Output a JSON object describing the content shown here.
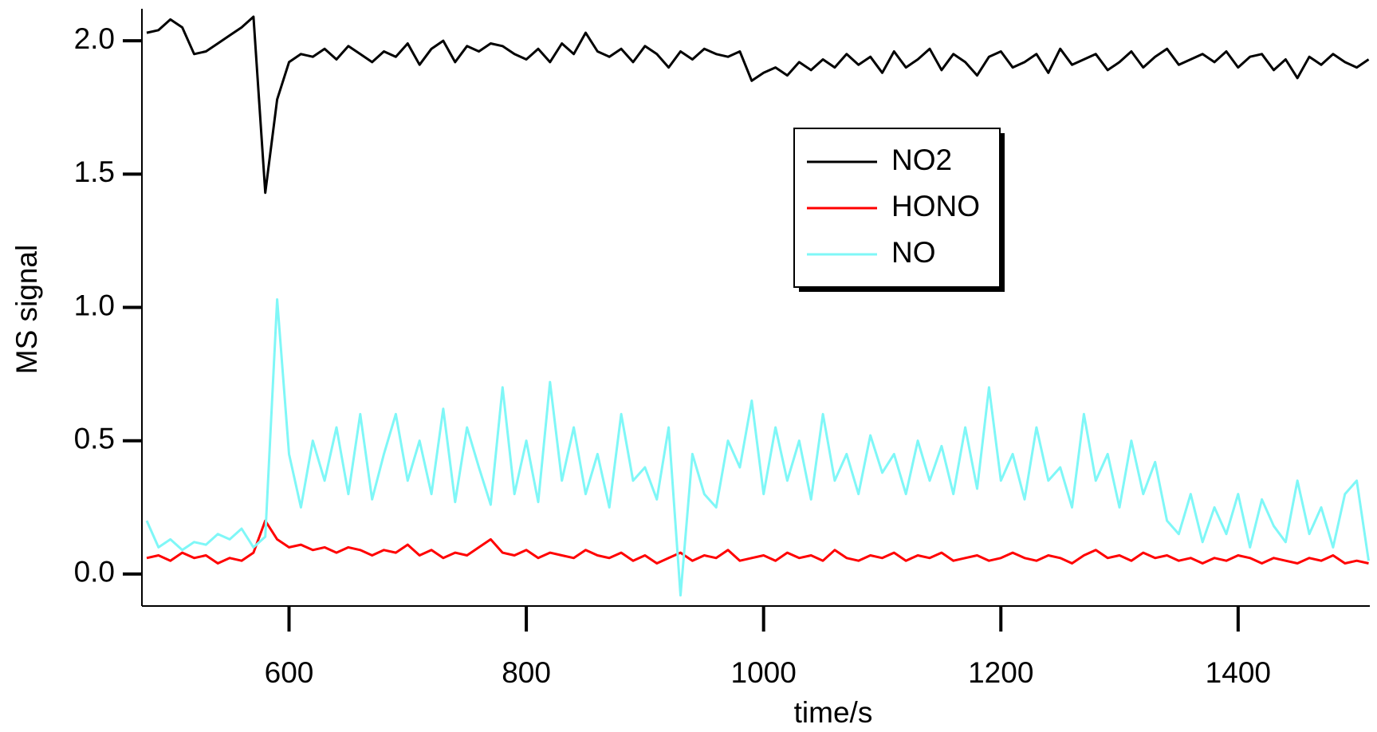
{
  "chart_data": {
    "type": "line",
    "xlabel": "time/s",
    "ylabel": "MS signal",
    "x": [
      480,
      490,
      500,
      510,
      520,
      530,
      540,
      550,
      560,
      570,
      580,
      590,
      600,
      610,
      620,
      630,
      640,
      650,
      660,
      670,
      680,
      690,
      700,
      710,
      720,
      730,
      740,
      750,
      760,
      770,
      780,
      790,
      800,
      810,
      820,
      830,
      840,
      850,
      860,
      870,
      880,
      890,
      900,
      910,
      920,
      930,
      940,
      950,
      960,
      970,
      980,
      990,
      1000,
      1010,
      1020,
      1030,
      1040,
      1050,
      1060,
      1070,
      1080,
      1090,
      1100,
      1110,
      1120,
      1130,
      1140,
      1150,
      1160,
      1170,
      1180,
      1190,
      1200,
      1210,
      1220,
      1230,
      1240,
      1250,
      1260,
      1270,
      1280,
      1290,
      1300,
      1310,
      1320,
      1330,
      1340,
      1350,
      1360,
      1370,
      1380,
      1390,
      1400,
      1410,
      1420,
      1430,
      1440,
      1450,
      1460,
      1470,
      1480,
      1490,
      1500,
      1510
    ],
    "series": [
      {
        "name": "NO2",
        "color": "#000000",
        "values": [
          2.03,
          2.04,
          2.08,
          2.05,
          1.95,
          1.96,
          1.99,
          2.02,
          2.05,
          2.09,
          1.43,
          1.78,
          1.92,
          1.95,
          1.94,
          1.97,
          1.93,
          1.98,
          1.95,
          1.92,
          1.96,
          1.94,
          1.99,
          1.91,
          1.97,
          2.0,
          1.92,
          1.98,
          1.96,
          1.99,
          1.98,
          1.95,
          1.93,
          1.97,
          1.92,
          1.99,
          1.95,
          2.03,
          1.96,
          1.94,
          1.97,
          1.92,
          1.98,
          1.95,
          1.9,
          1.96,
          1.93,
          1.97,
          1.95,
          1.94,
          1.96,
          1.85,
          1.88,
          1.9,
          1.87,
          1.92,
          1.89,
          1.93,
          1.9,
          1.95,
          1.91,
          1.94,
          1.88,
          1.96,
          1.9,
          1.93,
          1.97,
          1.89,
          1.95,
          1.92,
          1.87,
          1.94,
          1.96,
          1.9,
          1.92,
          1.95,
          1.88,
          1.97,
          1.91,
          1.93,
          1.95,
          1.89,
          1.92,
          1.96,
          1.9,
          1.94,
          1.97,
          1.91,
          1.93,
          1.95,
          1.92,
          1.96,
          1.9,
          1.94,
          1.95,
          1.89,
          1.93,
          1.86,
          1.94,
          1.91,
          1.95,
          1.92,
          1.9,
          1.93
        ]
      },
      {
        "name": "HONO",
        "color": "#ff0000",
        "values": [
          0.06,
          0.07,
          0.05,
          0.08,
          0.06,
          0.07,
          0.04,
          0.06,
          0.05,
          0.08,
          0.2,
          0.13,
          0.1,
          0.11,
          0.09,
          0.1,
          0.08,
          0.1,
          0.09,
          0.07,
          0.09,
          0.08,
          0.11,
          0.07,
          0.09,
          0.06,
          0.08,
          0.07,
          0.1,
          0.13,
          0.08,
          0.07,
          0.09,
          0.06,
          0.08,
          0.07,
          0.06,
          0.09,
          0.07,
          0.06,
          0.08,
          0.05,
          0.07,
          0.04,
          0.06,
          0.08,
          0.05,
          0.07,
          0.06,
          0.09,
          0.05,
          0.06,
          0.07,
          0.05,
          0.08,
          0.06,
          0.07,
          0.05,
          0.09,
          0.06,
          0.05,
          0.07,
          0.06,
          0.08,
          0.05,
          0.07,
          0.06,
          0.08,
          0.05,
          0.06,
          0.07,
          0.05,
          0.06,
          0.08,
          0.06,
          0.05,
          0.07,
          0.06,
          0.04,
          0.07,
          0.09,
          0.06,
          0.07,
          0.05,
          0.08,
          0.06,
          0.07,
          0.05,
          0.06,
          0.04,
          0.06,
          0.05,
          0.07,
          0.06,
          0.04,
          0.06,
          0.05,
          0.04,
          0.06,
          0.05,
          0.07,
          0.04,
          0.05,
          0.04
        ]
      },
      {
        "name": "NO",
        "color": "#7ff7f7",
        "values": [
          0.2,
          0.1,
          0.13,
          0.09,
          0.12,
          0.11,
          0.15,
          0.13,
          0.17,
          0.1,
          0.14,
          1.03,
          0.45,
          0.25,
          0.5,
          0.35,
          0.55,
          0.3,
          0.6,
          0.28,
          0.45,
          0.6,
          0.35,
          0.5,
          0.3,
          0.62,
          0.27,
          0.55,
          0.4,
          0.26,
          0.7,
          0.3,
          0.5,
          0.27,
          0.72,
          0.35,
          0.55,
          0.3,
          0.45,
          0.25,
          0.6,
          0.35,
          0.4,
          0.28,
          0.55,
          -0.08,
          0.45,
          0.3,
          0.25,
          0.5,
          0.4,
          0.65,
          0.3,
          0.55,
          0.35,
          0.5,
          0.28,
          0.6,
          0.35,
          0.45,
          0.3,
          0.52,
          0.38,
          0.45,
          0.3,
          0.5,
          0.35,
          0.48,
          0.3,
          0.55,
          0.32,
          0.7,
          0.35,
          0.45,
          0.28,
          0.55,
          0.35,
          0.4,
          0.25,
          0.6,
          0.35,
          0.45,
          0.25,
          0.5,
          0.3,
          0.42,
          0.2,
          0.15,
          0.3,
          0.12,
          0.25,
          0.15,
          0.3,
          0.1,
          0.28,
          0.18,
          0.12,
          0.35,
          0.15,
          0.25,
          0.1,
          0.3,
          0.35,
          0.05
        ]
      }
    ],
    "xlim": [
      476,
      1511
    ],
    "xticks": [
      600,
      800,
      1000,
      1200,
      1400
    ],
    "ylim": [
      -0.12,
      2.12
    ],
    "yticks": [
      {
        "value": 0,
        "label": "0.0"
      },
      0.5,
      {
        "value": 1,
        "label": "1.0"
      },
      1.5,
      {
        "value": 2,
        "label": "2.0"
      }
    ],
    "grid": false,
    "legend": "center right"
  }
}
